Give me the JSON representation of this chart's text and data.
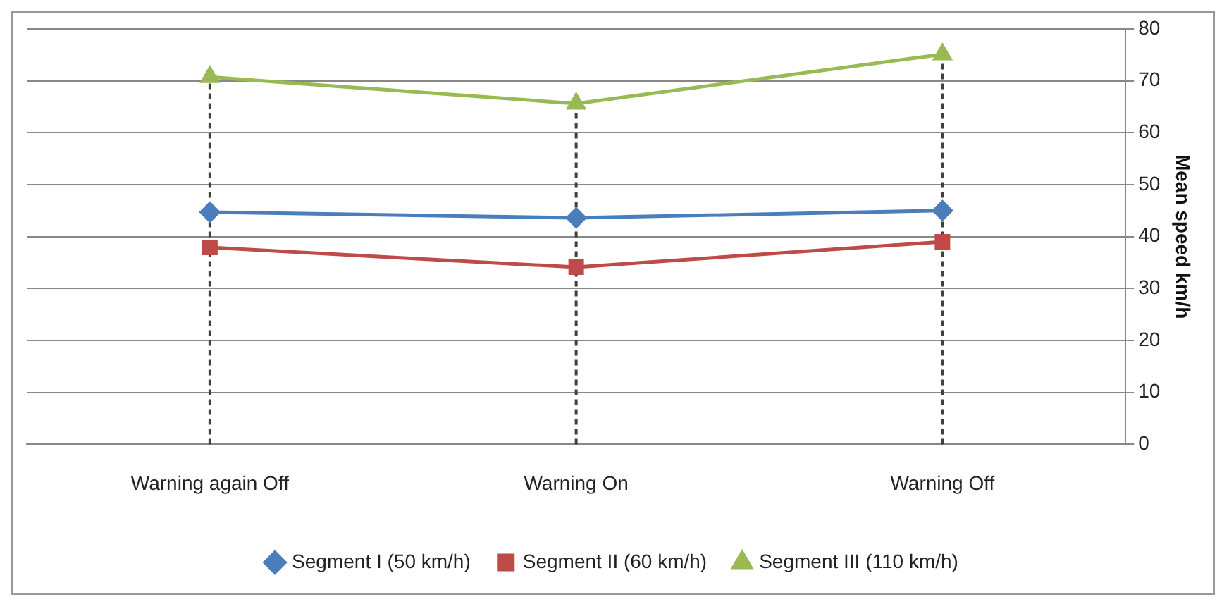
{
  "chart_data": {
    "type": "line",
    "ylabel": "Mean speed km/h",
    "categories": [
      "Warning again Off",
      "Warning On",
      "Warning Off"
    ],
    "series": [
      {
        "name": "Segment I (50 km/h)",
        "color": "#4a7ebb",
        "values": [
          44.7,
          43.6,
          45
        ],
        "marker": "diamond"
      },
      {
        "name": "Segment II (60 km/h)",
        "color": "#be4b48",
        "values": [
          37.9,
          34.1,
          39
        ],
        "marker": "square"
      },
      {
        "name": "Segment III (110 km/h)",
        "color": "#98b954",
        "values": [
          70.7,
          65.6,
          75.1
        ],
        "marker": "triangle"
      }
    ],
    "ylim": [
      0,
      80
    ],
    "yticks": [
      0,
      10,
      20,
      30,
      40,
      50,
      60,
      70,
      80
    ],
    "grid": "y",
    "legend": "bottom",
    "ref_lines": [
      {
        "axis": "x",
        "value": "Warning again Off",
        "color": "#404040",
        "line_style": "dashed"
      },
      {
        "axis": "x",
        "value": "Warning On",
        "color": "#404040",
        "line_style": "dashed"
      },
      {
        "axis": "x",
        "value": "Warning Off",
        "color": "#404040",
        "line_style": "dashed"
      }
    ]
  }
}
